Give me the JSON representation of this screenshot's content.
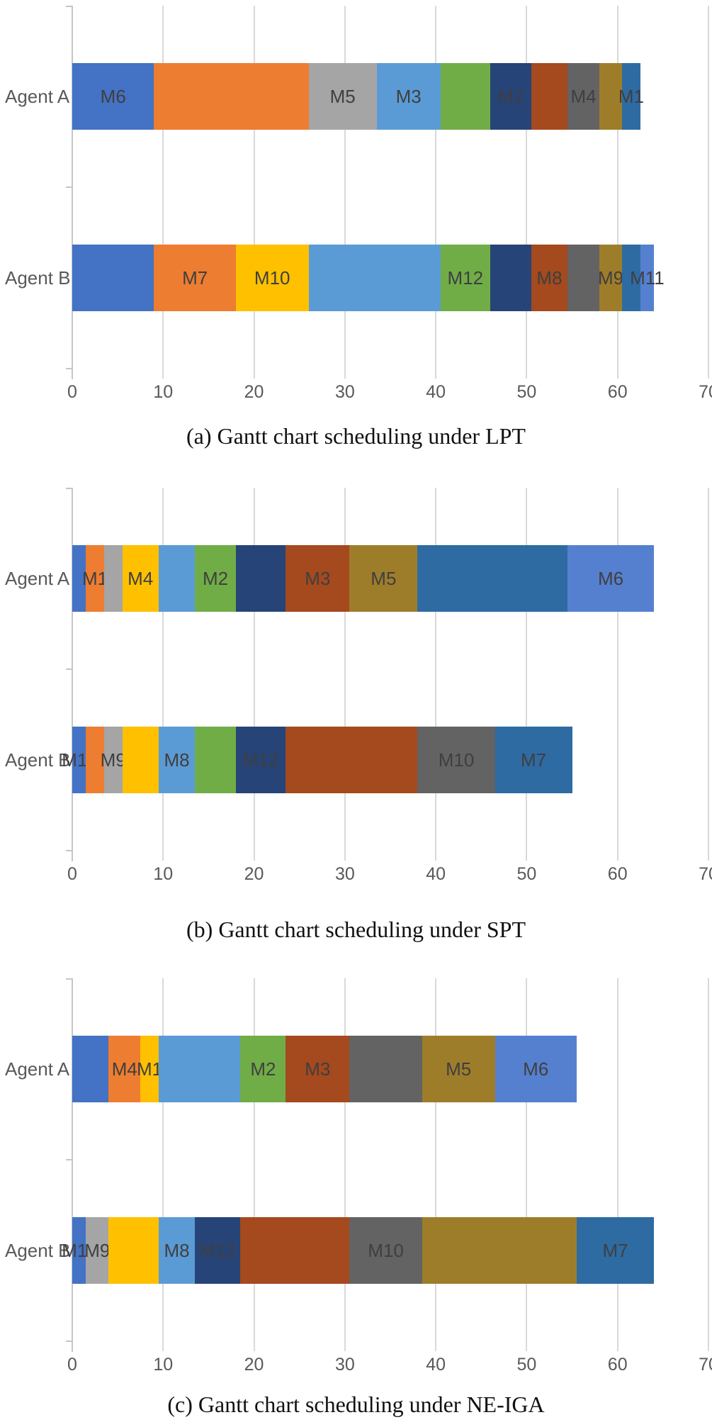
{
  "figure": {
    "description": "Three Gantt charts comparing two-agent schedules",
    "captions": {
      "a": "(a) Gantt chart scheduling under LPT",
      "b": "(b) Gantt chart scheduling under SPT",
      "c": "(c) Gantt chart scheduling under NE-IGA"
    }
  },
  "colors": {
    "blue": "#4472C4",
    "orange": "#ED7D31",
    "gray": "#A5A5A5",
    "gold": "#FFC000",
    "lightblue": "#5B9BD5",
    "green": "#70AD47",
    "navy": "#264478",
    "darkred": "#A5491E",
    "darkgray": "#636363",
    "darkgold": "#9E7D2A",
    "steel": "#2E6BA3",
    "royal": "#5580D0",
    "gridline": "#D9D9D9",
    "axis": "#C6C6C6",
    "tick_label": "#595959",
    "segment_label": "#3F3F3F"
  },
  "chart_data": [
    {
      "type": "bar",
      "subtype": "stacked-horizontal-gantt",
      "title": "(a) Gantt chart scheduling under LPT",
      "categories": [
        "Agent A",
        "Agent B"
      ],
      "x_axis": {
        "min": 0,
        "max": 70,
        "tick_interval": 10,
        "ticks": [
          "0",
          "10",
          "20",
          "30",
          "40",
          "50",
          "60",
          "70"
        ]
      },
      "grid": true,
      "rows": [
        {
          "label": "Agent A",
          "makespan": 62.5,
          "segments": [
            {
              "start": 0,
              "end": 9,
              "color": "blue",
              "label": "M6"
            },
            {
              "start": 9,
              "end": 26,
              "color": "orange"
            },
            {
              "start": 26,
              "end": 33.5,
              "color": "gray",
              "label": "M5"
            },
            {
              "start": 33.5,
              "end": 40.5,
              "color": "lightblue",
              "label": "M3"
            },
            {
              "start": 40.5,
              "end": 46,
              "color": "green"
            },
            {
              "start": 46,
              "end": 50.5,
              "color": "navy",
              "label": "M2"
            },
            {
              "start": 50.5,
              "end": 54.5,
              "color": "darkred"
            },
            {
              "start": 54.5,
              "end": 58,
              "color": "darkgray",
              "label": "M4"
            },
            {
              "start": 58,
              "end": 60.5,
              "color": "darkgold"
            },
            {
              "start": 60.5,
              "end": 62.5,
              "color": "steel",
              "label": "M1"
            }
          ]
        },
        {
          "label": "Agent B",
          "makespan": 64,
          "segments": [
            {
              "start": 0,
              "end": 9,
              "color": "blue"
            },
            {
              "start": 9,
              "end": 18,
              "color": "orange",
              "label": "M7"
            },
            {
              "start": 18,
              "end": 26,
              "color": "gold",
              "label": "M10"
            },
            {
              "start": 26,
              "end": 40.5,
              "color": "lightblue"
            },
            {
              "start": 40.5,
              "end": 46,
              "color": "green",
              "label": "M12"
            },
            {
              "start": 46,
              "end": 50.5,
              "color": "navy"
            },
            {
              "start": 50.5,
              "end": 54.5,
              "color": "darkred",
              "label": "M8"
            },
            {
              "start": 54.5,
              "end": 58,
              "color": "darkgray"
            },
            {
              "start": 58,
              "end": 60.5,
              "color": "darkgold",
              "label": "M9"
            },
            {
              "start": 60.5,
              "end": 62.5,
              "color": "steel"
            },
            {
              "start": 62.5,
              "end": 64,
              "color": "royal",
              "label": "M11"
            }
          ]
        }
      ]
    },
    {
      "type": "bar",
      "subtype": "stacked-horizontal-gantt",
      "title": "(b) Gantt chart scheduling under SPT",
      "categories": [
        "Agent A",
        "Agent B"
      ],
      "x_axis": {
        "min": 0,
        "max": 70,
        "tick_interval": 10,
        "ticks": [
          "0",
          "10",
          "20",
          "30",
          "40",
          "50",
          "60",
          "70"
        ]
      },
      "grid": true,
      "rows": [
        {
          "label": "Agent A",
          "makespan": 64,
          "segments": [
            {
              "start": 0,
              "end": 1.5,
              "color": "blue"
            },
            {
              "start": 1.5,
              "end": 3.5,
              "color": "orange",
              "label": "M1"
            },
            {
              "start": 3.5,
              "end": 5.5,
              "color": "gray"
            },
            {
              "start": 5.5,
              "end": 9.5,
              "color": "gold",
              "label": "M4"
            },
            {
              "start": 9.5,
              "end": 13.5,
              "color": "lightblue"
            },
            {
              "start": 13.5,
              "end": 18,
              "color": "green",
              "label": "M2"
            },
            {
              "start": 18,
              "end": 23.5,
              "color": "navy"
            },
            {
              "start": 23.5,
              "end": 30.5,
              "color": "darkred",
              "label": "M3"
            },
            {
              "start": 30.5,
              "end": 38,
              "color": "darkgold",
              "label": "M5"
            },
            {
              "start": 38,
              "end": 54.5,
              "color": "steel"
            },
            {
              "start": 54.5,
              "end": 64,
              "color": "royal",
              "label": "M6"
            }
          ]
        },
        {
          "label": "Agent B",
          "makespan": 55,
          "segments": [
            {
              "start": 0,
              "end": 1.5,
              "color": "blue",
              "label": "M11"
            },
            {
              "start": 1.5,
              "end": 3.5,
              "color": "orange"
            },
            {
              "start": 3.5,
              "end": 5.5,
              "color": "gray",
              "label": "M9"
            },
            {
              "start": 5.5,
              "end": 9.5,
              "color": "gold"
            },
            {
              "start": 9.5,
              "end": 13.5,
              "color": "lightblue",
              "label": "M8"
            },
            {
              "start": 13.5,
              "end": 18,
              "color": "green"
            },
            {
              "start": 18,
              "end": 23.5,
              "color": "navy",
              "label": "M12"
            },
            {
              "start": 23.5,
              "end": 38,
              "color": "darkred"
            },
            {
              "start": 38,
              "end": 46.5,
              "color": "darkgray",
              "label": "M10"
            },
            {
              "start": 46.5,
              "end": 55,
              "color": "steel",
              "label": "M7"
            }
          ]
        }
      ]
    },
    {
      "type": "bar",
      "subtype": "stacked-horizontal-gantt",
      "title": "(c) Gantt chart scheduling under NE-IGA",
      "categories": [
        "Agent A",
        "Agent B"
      ],
      "x_axis": {
        "min": 0,
        "max": 70,
        "tick_interval": 10,
        "ticks": [
          "0",
          "10",
          "20",
          "30",
          "40",
          "50",
          "60",
          "70"
        ]
      },
      "grid": true,
      "rows": [
        {
          "label": "Agent A",
          "makespan": 55.5,
          "segments": [
            {
              "start": 0,
              "end": 4,
              "color": "blue"
            },
            {
              "start": 4,
              "end": 7.5,
              "color": "orange",
              "label": "M4"
            },
            {
              "start": 7.5,
              "end": 9.5,
              "color": "gold",
              "label": "M1"
            },
            {
              "start": 9.5,
              "end": 18.5,
              "color": "lightblue"
            },
            {
              "start": 18.5,
              "end": 23.5,
              "color": "green",
              "label": "M2"
            },
            {
              "start": 23.5,
              "end": 30.5,
              "color": "darkred",
              "label": "M3"
            },
            {
              "start": 30.5,
              "end": 38.5,
              "color": "darkgray"
            },
            {
              "start": 38.5,
              "end": 46.5,
              "color": "darkgold",
              "label": "M5"
            },
            {
              "start": 46.5,
              "end": 55.5,
              "color": "royal",
              "label": "M6"
            }
          ]
        },
        {
          "label": "Agent B",
          "makespan": 64,
          "segments": [
            {
              "start": 0,
              "end": 1.5,
              "color": "blue",
              "label": "M11"
            },
            {
              "start": 1.5,
              "end": 4,
              "color": "gray",
              "label": "M9"
            },
            {
              "start": 4,
              "end": 9.5,
              "color": "gold"
            },
            {
              "start": 9.5,
              "end": 13.5,
              "color": "lightblue",
              "label": "M8"
            },
            {
              "start": 13.5,
              "end": 18.5,
              "color": "navy",
              "label": "M12"
            },
            {
              "start": 18.5,
              "end": 30.5,
              "color": "darkred"
            },
            {
              "start": 30.5,
              "end": 38.5,
              "color": "darkgray",
              "label": "M10"
            },
            {
              "start": 38.5,
              "end": 55.5,
              "color": "darkgold"
            },
            {
              "start": 55.5,
              "end": 64,
              "color": "steel",
              "label": "M7"
            }
          ]
        }
      ]
    }
  ]
}
